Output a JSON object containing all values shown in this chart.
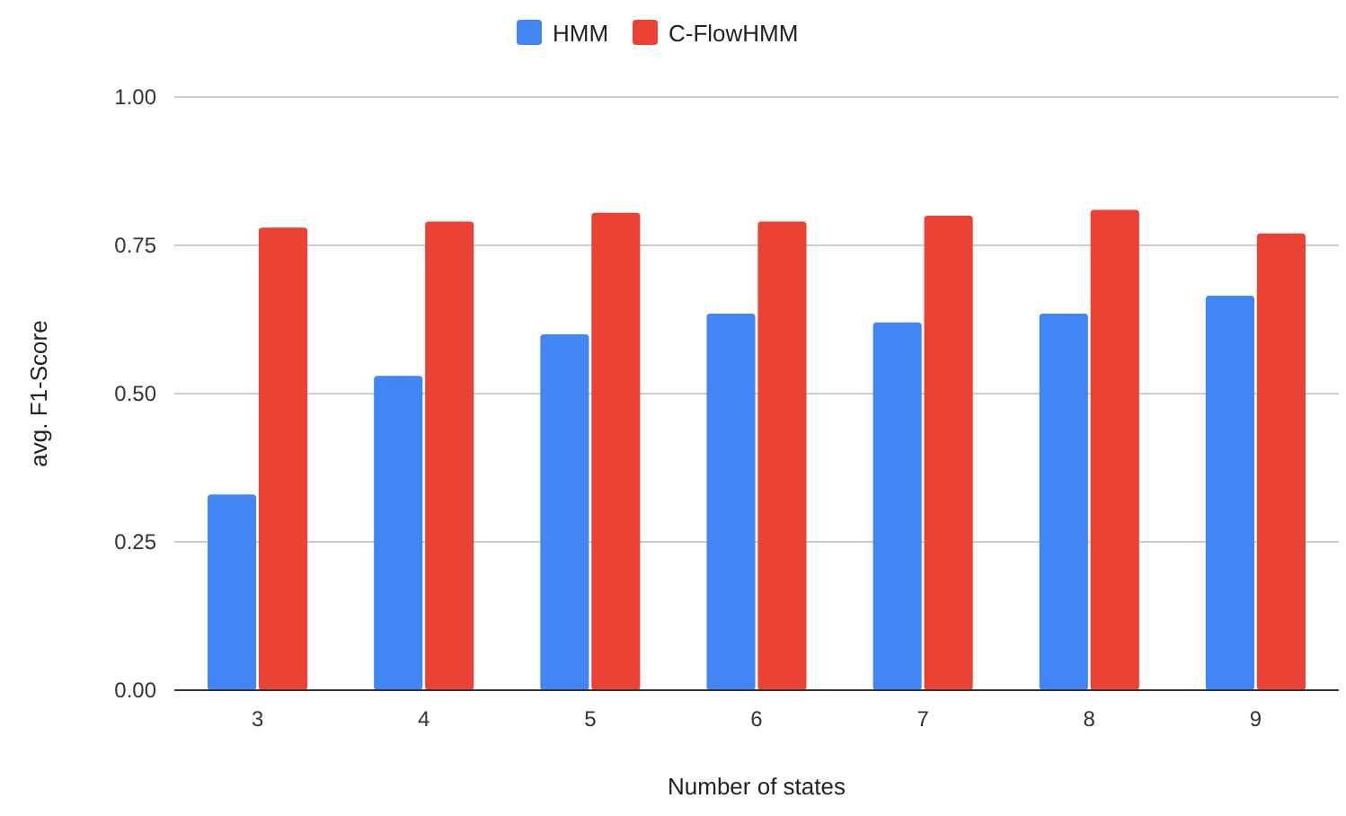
{
  "chart_data": {
    "type": "bar",
    "xlabel": "Number of states",
    "ylabel": "avg. F1-Score",
    "categories": [
      "3",
      "4",
      "5",
      "6",
      "7",
      "8",
      "9"
    ],
    "series": [
      {
        "name": "HMM",
        "color": "#4285f4",
        "values": [
          0.33,
          0.53,
          0.6,
          0.635,
          0.62,
          0.635,
          0.665
        ]
      },
      {
        "name": "C-FlowHMM",
        "color": "#ea4335",
        "values": [
          0.78,
          0.79,
          0.805,
          0.79,
          0.8,
          0.81,
          0.77
        ]
      }
    ],
    "ylim": [
      0,
      1
    ],
    "yticks": [
      {
        "value": 0,
        "label": "0.00"
      },
      {
        "value": 0.25,
        "label": "0.25"
      },
      {
        "value": 0.5,
        "label": "0.50"
      },
      {
        "value": 0.75,
        "label": "0.75"
      },
      {
        "value": 1,
        "label": "1.00"
      }
    ],
    "grid": "y",
    "legend": "top"
  }
}
